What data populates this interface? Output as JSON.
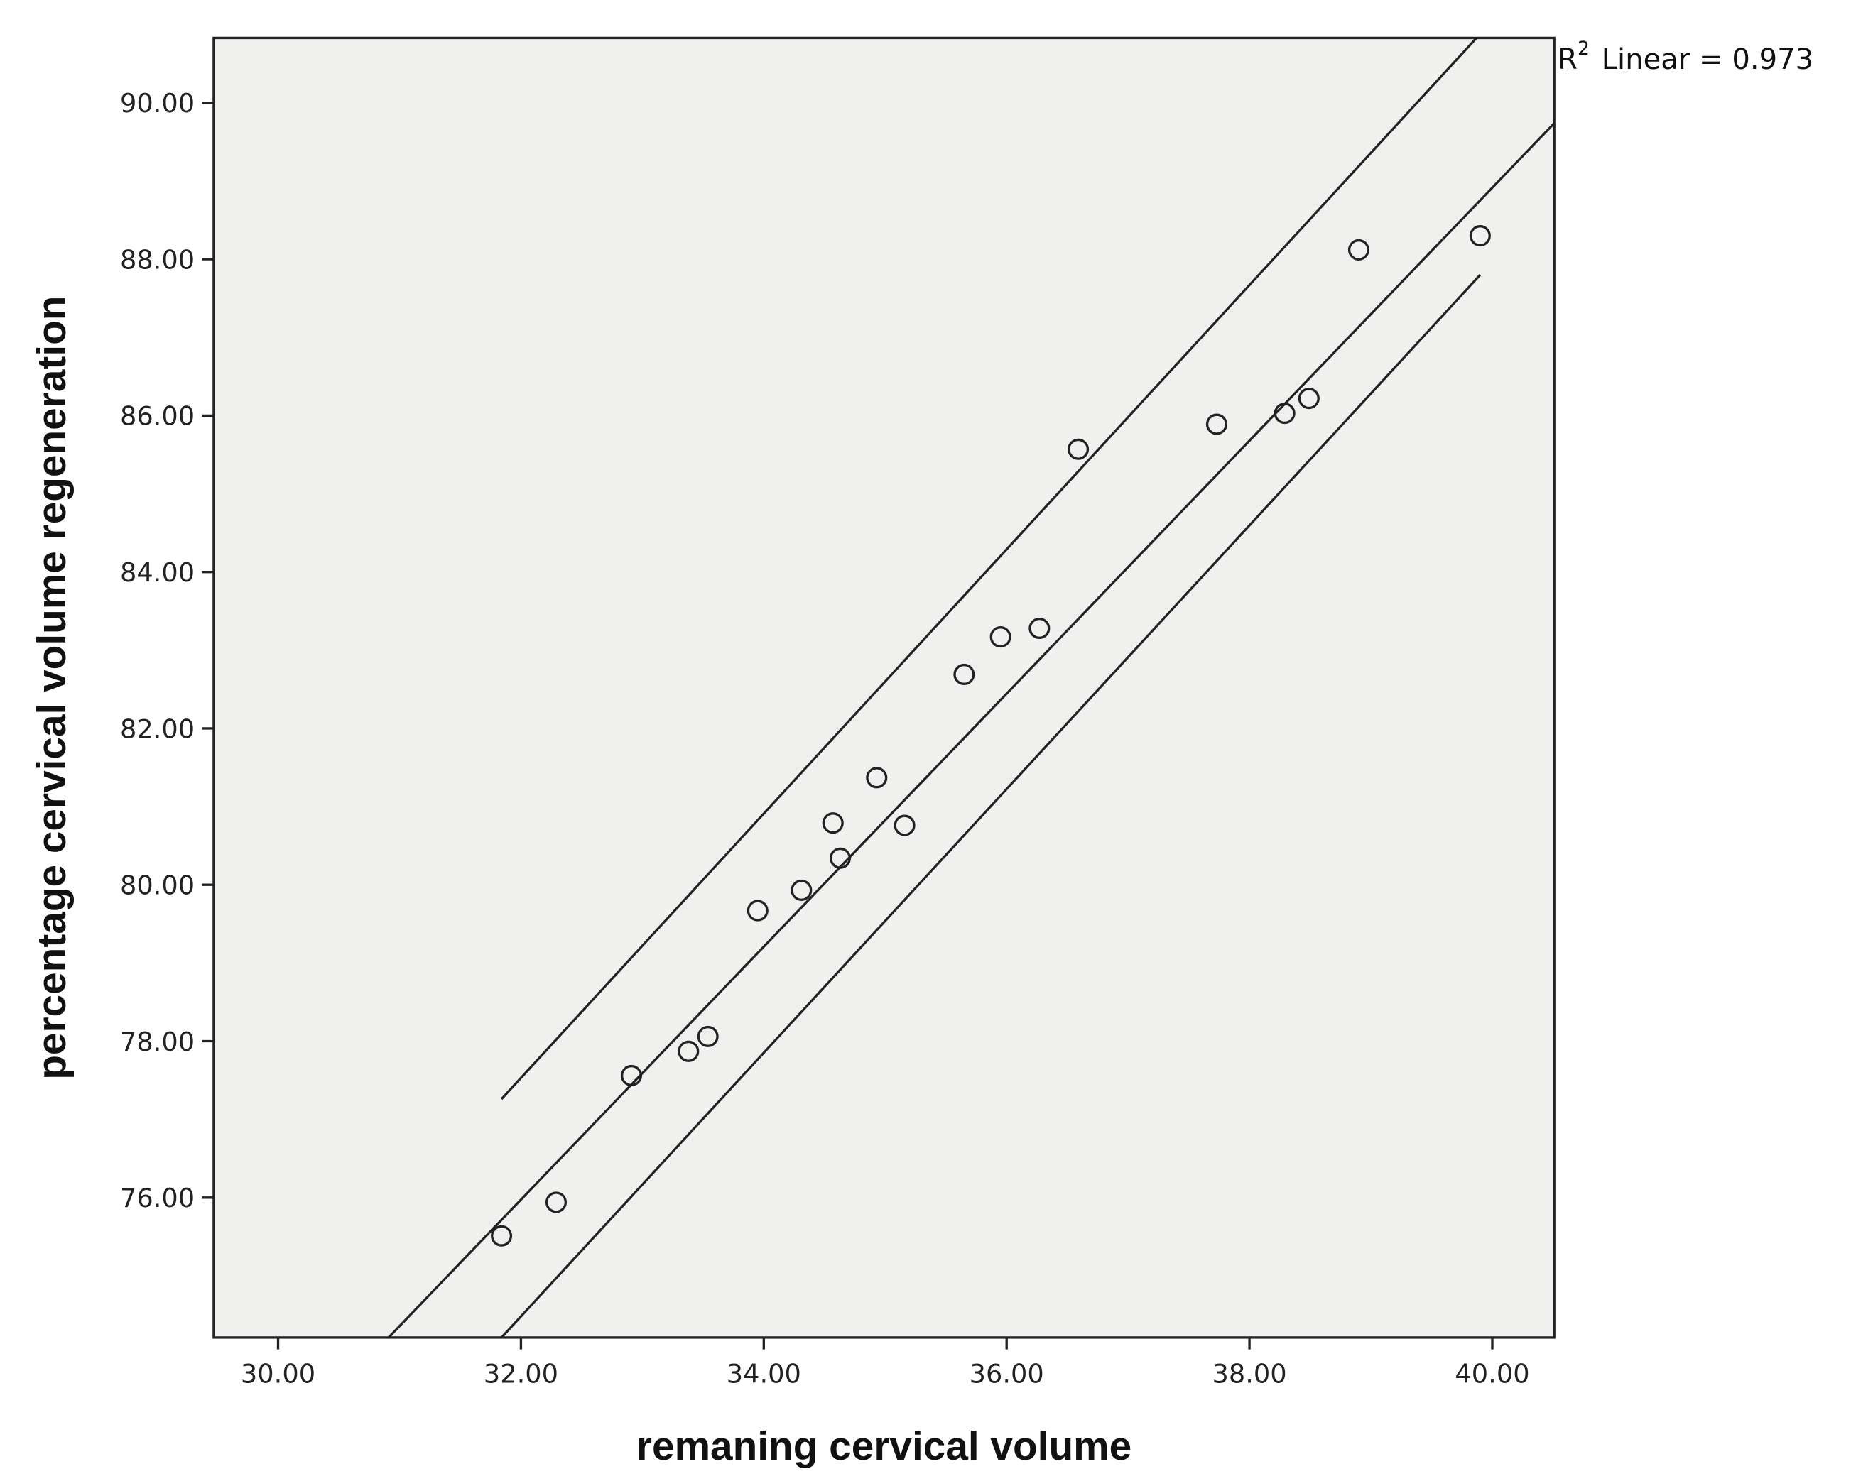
{
  "chart_data": {
    "type": "scatter",
    "x_label": "remaning cervical volume",
    "y_label": "percentage cervical volume regeneration",
    "annotation": {
      "base": "R",
      "sup": "2",
      "text": "Linear = 0.973"
    },
    "xlim": [
      29.47,
      40.51
    ],
    "ylim": [
      74.21,
      90.83
    ],
    "xticks": [
      {
        "value": 30,
        "label": "30.00"
      },
      {
        "value": 32,
        "label": "32.00"
      },
      {
        "value": 34,
        "label": "34.00"
      },
      {
        "value": 36,
        "label": "36.00"
      },
      {
        "value": 38,
        "label": "38.00"
      },
      {
        "value": 40,
        "label": "40.00"
      }
    ],
    "yticks": [
      {
        "value": 76,
        "label": "76.00"
      },
      {
        "value": 78,
        "label": "78.00"
      },
      {
        "value": 80,
        "label": "80.00"
      },
      {
        "value": 82,
        "label": "82.00"
      },
      {
        "value": 84,
        "label": "84.00"
      },
      {
        "value": 86,
        "label": "86.00"
      },
      {
        "value": 88,
        "label": "88.00"
      },
      {
        "value": 90,
        "label": "90.00"
      }
    ],
    "background": "#f0f0ef",
    "series": [
      {
        "type": "scatter",
        "color": "#222222",
        "x": [
          31.84,
          32.29,
          32.91,
          33.38,
          33.54,
          33.95,
          34.31,
          34.57,
          34.63,
          34.93,
          35.16,
          35.65,
          35.95,
          36.27,
          36.59,
          37.73,
          38.29,
          38.49,
          38.9,
          39.9
        ],
        "values": [
          75.51,
          75.94,
          77.56,
          77.87,
          78.06,
          79.67,
          79.93,
          80.79,
          80.34,
          81.37,
          80.76,
          82.69,
          83.17,
          83.28,
          85.57,
          85.89,
          86.03,
          86.22,
          88.12,
          88.3
        ]
      },
      {
        "type": "line",
        "color": "#222222",
        "x": [
          30.91,
          40.51
        ],
        "values": [
          74.21,
          89.74
        ]
      },
      {
        "type": "line",
        "color": "#222222",
        "x": [
          31.84,
          39.87
        ],
        "values": [
          77.26,
          90.83
        ]
      },
      {
        "type": "line",
        "color": "#222222",
        "x": [
          31.84,
          39.9
        ],
        "values": [
          74.21,
          87.8
        ]
      }
    ]
  }
}
